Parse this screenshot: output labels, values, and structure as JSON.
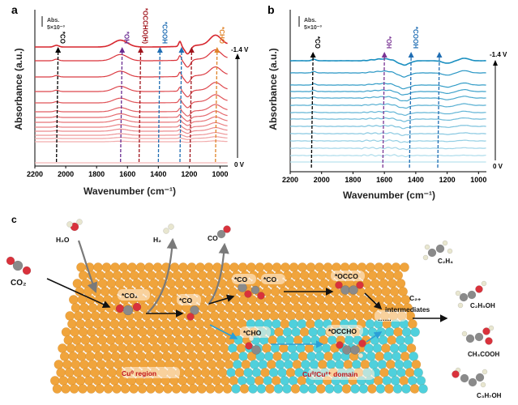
{
  "chart_data": [
    {
      "panel": "a",
      "type": "line",
      "xlabel": "Wavenumber (cm⁻¹)",
      "ylabel": "Absorbance (a.u.)",
      "xlim": [
        2200,
        950
      ],
      "x_reversed": true,
      "xticks": [
        "2200",
        "2000",
        "1800",
        "1600",
        "1400",
        "1200",
        "1000"
      ],
      "grid": false,
      "scale_bar": {
        "line1": "Abs.",
        "line2": "5×10⁻³"
      },
      "potential_top": "-1.4 V",
      "potential_bottom": "0 V",
      "curve_count": 14,
      "color_top": "#d7262e",
      "color_bottom": "#f4b8b8",
      "peaks": [
        {
          "x": 2060,
          "rel": 0.15,
          "width": 15
        },
        {
          "x": 1645,
          "rel": 0.6,
          "width": 45
        },
        {
          "x": 1260,
          "rel": 0.45,
          "width": 8
        },
        {
          "x": 1210,
          "rel": -0.7,
          "width": 18
        },
        {
          "x": 1030,
          "rel": 0.8,
          "width": 35
        }
      ],
      "annotations": [
        {
          "label": "*CO",
          "x": 2060,
          "color": "#000000"
        },
        {
          "label": "*OH",
          "x": 1645,
          "color": "#6a2c91"
        },
        {
          "label": "*OCCHO(H)",
          "x": 1525,
          "color": "#a0141c"
        },
        {
          "label": "*COOH",
          "x": 1400,
          "color": "#1f6db3"
        },
        {
          "label": "",
          "x": 1260,
          "color": "#1f6db3"
        },
        {
          "label": "",
          "x": 1195,
          "color": "#a0141c"
        },
        {
          "label": "*CHO",
          "x": 1030,
          "color": "#e0842a"
        }
      ]
    },
    {
      "panel": "b",
      "type": "line",
      "xlabel": "Wavenumber (cm⁻¹)",
      "ylabel": "Absorbance (a.u.)",
      "xlim": [
        2200,
        950
      ],
      "x_reversed": true,
      "xticks": [
        "2200",
        "2000",
        "1800",
        "1600",
        "1400",
        "1200",
        "1000"
      ],
      "grid": false,
      "scale_bar": {
        "line1": "Abs.",
        "line2": "5×10⁻³"
      },
      "potential_top": "-1.4 V",
      "potential_bottom": "0 V",
      "curve_count": 14,
      "color_top": "#1a8fc0",
      "color_bottom": "#b9e2ef",
      "peaks": [
        {
          "x": 2050,
          "rel": 0.2,
          "width": 12
        },
        {
          "x": 1610,
          "rel": 0.25,
          "width": 50
        },
        {
          "x": 1475,
          "rel": -0.5,
          "width": 35
        },
        {
          "x": 1200,
          "rel": -0.3,
          "width": 30
        },
        {
          "x": 1090,
          "rel": 0.3,
          "width": 30
        }
      ],
      "annotations": [
        {
          "label": "*CO",
          "x": 2065,
          "color": "#000000"
        },
        {
          "label": "*OH",
          "x": 1610,
          "color": "#7a3595"
        },
        {
          "label": "*COOH",
          "x": 1440,
          "color": "#1f6db3"
        },
        {
          "label": "",
          "x": 1260,
          "color": "#1f6db3"
        }
      ]
    }
  ],
  "panel_labels": {
    "a": "a",
    "b": "b",
    "c": "c"
  },
  "schematic": {
    "molecules": {
      "h2o": "H₂O",
      "co2": "CO₂",
      "h2": "H₂",
      "co": "CO",
      "c2h4": "C₂H₄",
      "c2h5oh": "C₂H₅OH",
      "ch3cooh": "CH₃COOH",
      "c3h7oh": "C₃H₇OH"
    },
    "intermediates": {
      "co2_ads": "*CO₂",
      "co_ads_1": "*CO",
      "co_ads_2": "*CO",
      "co_ads_3": "*CO",
      "occo": "*OCCO",
      "cho": "*CHO",
      "occho": "*OCCHO",
      "c2plus": "C₂₊",
      "c2plus_sub": "intermediates",
      "ellipsis": "……"
    },
    "regions": {
      "cu0": "Cu⁰ region",
      "cu_mixed": "Cu⁰/Cu²⁺ domain"
    },
    "colors": {
      "cu0": "#f0a43c",
      "cu2": "#4fd0dc",
      "carbon": "#8a8a8a",
      "oxygen": "#d9323c",
      "hydrogen": "#e8e6cf",
      "label_red": "#c0141c",
      "arrow_blue": "#2a9fd8"
    }
  }
}
